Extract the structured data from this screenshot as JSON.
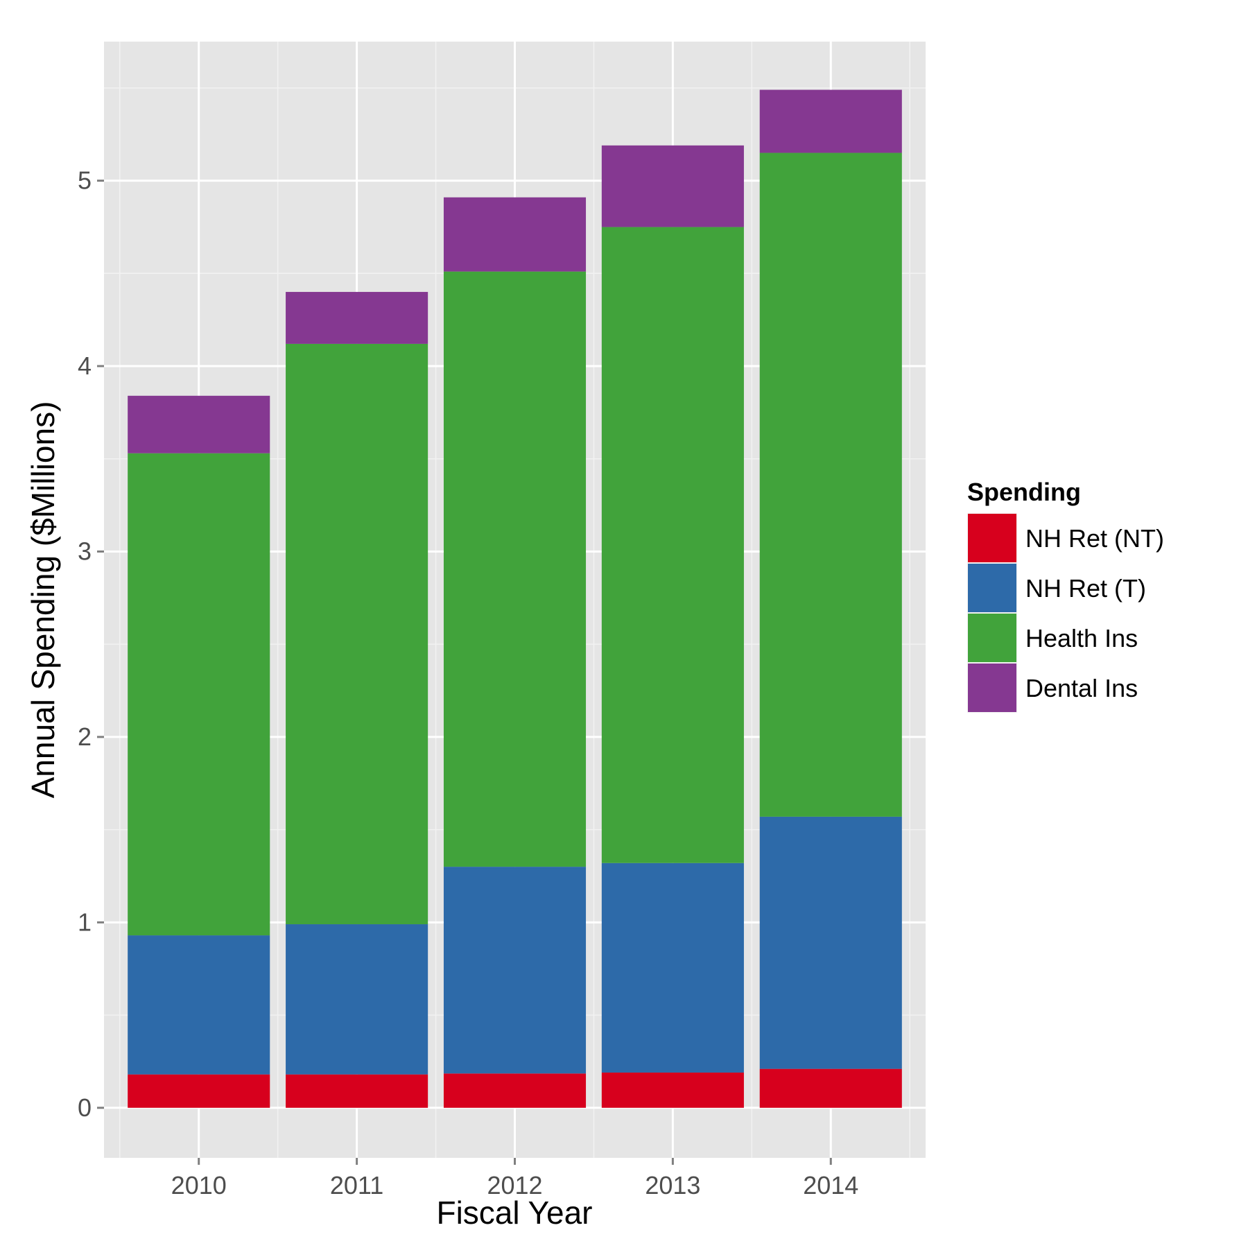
{
  "chart_data": {
    "type": "bar",
    "stacked": true,
    "categories": [
      "2010",
      "2011",
      "2012",
      "2013",
      "2014"
    ],
    "series": [
      {
        "name": "NH Ret (NT)",
        "color": "#d7001d",
        "values": [
          0.18,
          0.18,
          0.185,
          0.19,
          0.21
        ]
      },
      {
        "name": "NH Ret (T)",
        "color": "#2d6aa9",
        "values": [
          0.75,
          0.81,
          1.115,
          1.13,
          1.36
        ]
      },
      {
        "name": "Health Ins",
        "color": "#41a33b",
        "values": [
          2.6,
          3.13,
          3.21,
          3.43,
          3.58
        ]
      },
      {
        "name": "Dental Ins",
        "color": "#853891",
        "values": [
          0.31,
          0.28,
          0.4,
          0.44,
          0.34
        ]
      }
    ],
    "title": "",
    "xlabel": "Fiscal Year",
    "ylabel": "Annual Spending ($Millions)",
    "ylim": [
      -0.27,
      5.75
    ],
    "yticks": [
      0,
      1,
      2,
      3,
      4,
      5
    ],
    "yticks_labels": [
      "0",
      "1",
      "2",
      "3",
      "4",
      "5"
    ],
    "grid": true,
    "legend": {
      "title": "Spending",
      "position": "right"
    }
  }
}
